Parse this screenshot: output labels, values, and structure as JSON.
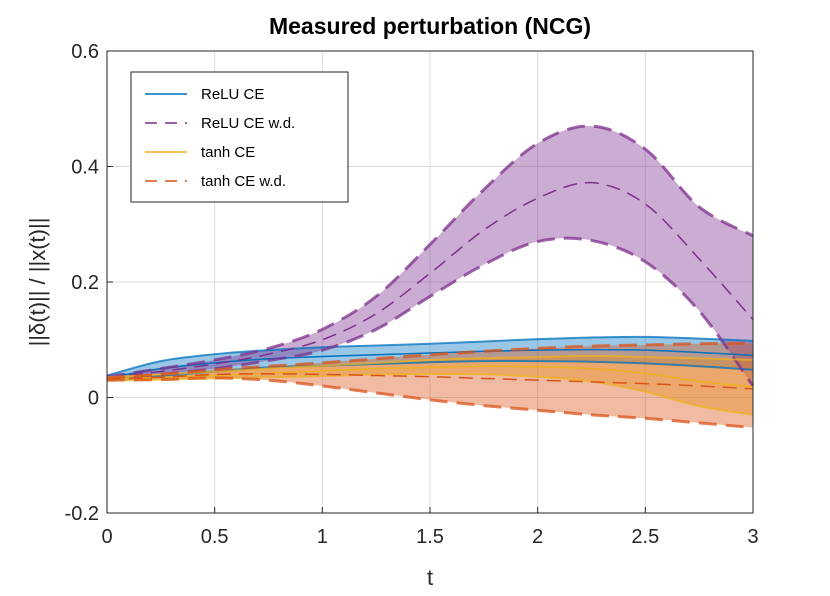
{
  "chart_data": {
    "type": "line",
    "title": "Measured perturbation (NCG)",
    "xlabel": "t",
    "ylabel": "||δ(t)|| / ||x(t)||",
    "xlim": [
      0,
      3
    ],
    "ylim": [
      -0.2,
      0.6
    ],
    "grid": true,
    "legend_position": "top-left",
    "x_ticks": [
      0,
      0.5,
      1,
      1.5,
      2,
      2.5,
      3
    ],
    "x_tick_labels": [
      "0",
      "0.5",
      "1",
      "1.5",
      "2",
      "2.5",
      "3"
    ],
    "y_ticks": [
      -0.2,
      0,
      0.2,
      0.4,
      0.6
    ],
    "y_tick_labels": [
      "-0.2",
      "0",
      "0.2",
      "0.4",
      "0.6"
    ],
    "x": [
      0,
      0.25,
      0.5,
      0.75,
      1.0,
      1.25,
      1.5,
      1.75,
      2.0,
      2.25,
      2.5,
      2.75,
      3.0
    ],
    "series": [
      {
        "name": "ReLU CE",
        "color": "#0072BD",
        "dash": "solid",
        "mean": [
          0.034,
          0.05,
          0.06,
          0.067,
          0.071,
          0.074,
          0.077,
          0.08,
          0.082,
          0.083,
          0.082,
          0.078,
          0.073
        ],
        "upper": [
          0.038,
          0.063,
          0.075,
          0.082,
          0.087,
          0.09,
          0.093,
          0.097,
          0.101,
          0.104,
          0.105,
          0.102,
          0.098
        ],
        "lower": [
          0.03,
          0.037,
          0.045,
          0.052,
          0.055,
          0.058,
          0.061,
          0.063,
          0.063,
          0.062,
          0.059,
          0.054,
          0.048
        ]
      },
      {
        "name": "ReLU CE w.d.",
        "color": "#7E2F8E",
        "dash": "dashed",
        "mean": [
          0.034,
          0.045,
          0.058,
          0.075,
          0.1,
          0.145,
          0.215,
          0.29,
          0.345,
          0.372,
          0.335,
          0.24,
          0.135
        ],
        "upper": [
          0.036,
          0.05,
          0.065,
          0.085,
          0.118,
          0.175,
          0.265,
          0.36,
          0.44,
          0.47,
          0.43,
          0.33,
          0.28
        ],
        "lower": [
          0.032,
          0.04,
          0.05,
          0.064,
          0.082,
          0.118,
          0.175,
          0.23,
          0.27,
          0.272,
          0.235,
          0.15,
          0.02
        ]
      },
      {
        "name": "tanh CE",
        "color": "#EDB120",
        "dash": "solid",
        "mean": [
          0.032,
          0.035,
          0.038,
          0.042,
          0.046,
          0.05,
          0.052,
          0.054,
          0.053,
          0.05,
          0.042,
          0.028,
          0.018
        ],
        "upper": [
          0.035,
          0.04,
          0.045,
          0.05,
          0.055,
          0.06,
          0.065,
          0.068,
          0.07,
          0.072,
          0.07,
          0.068,
          0.065
        ],
        "lower": [
          0.029,
          0.031,
          0.033,
          0.035,
          0.037,
          0.04,
          0.041,
          0.04,
          0.036,
          0.028,
          0.01,
          -0.015,
          -0.03
        ]
      },
      {
        "name": "tanh CE w.d.",
        "color": "#D95319",
        "dash": "dashed",
        "mean": [
          0.032,
          0.035,
          0.04,
          0.041,
          0.04,
          0.038,
          0.036,
          0.033,
          0.03,
          0.027,
          0.024,
          0.02,
          0.015
        ],
        "upper": [
          0.034,
          0.04,
          0.048,
          0.054,
          0.06,
          0.067,
          0.074,
          0.08,
          0.085,
          0.089,
          0.091,
          0.093,
          0.094
        ],
        "lower": [
          0.03,
          0.031,
          0.034,
          0.03,
          0.02,
          0.008,
          -0.004,
          -0.014,
          -0.022,
          -0.03,
          -0.036,
          -0.044,
          -0.052
        ]
      }
    ]
  }
}
